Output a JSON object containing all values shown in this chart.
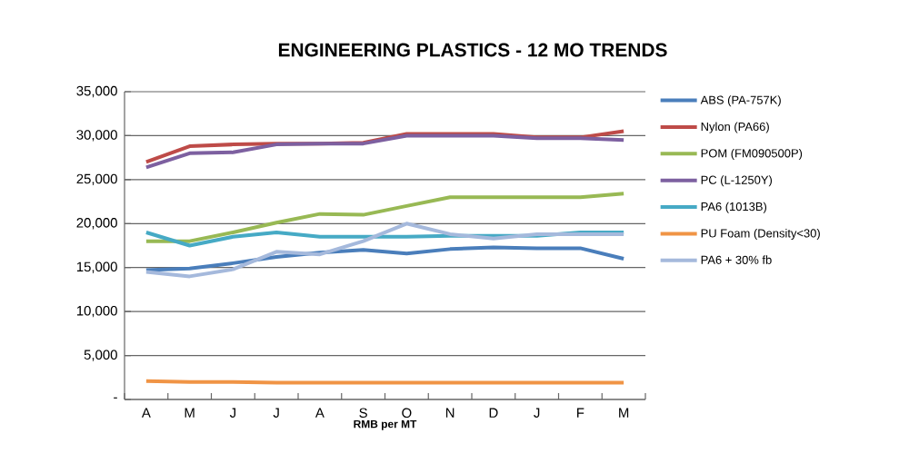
{
  "chart_data": {
    "type": "line",
    "title": "ENGINEERING PLASTICS - 12 MO TRENDS",
    "xlabel": "RMB per MT",
    "categories": [
      "A",
      "M",
      "J",
      "J",
      "A",
      "S",
      "O",
      "N",
      "D",
      "J",
      "F",
      "M"
    ],
    "series": [
      {
        "name": "ABS (PA-757K)",
        "color": "#4a7ebb",
        "values": [
          14700,
          14900,
          15500,
          16200,
          16700,
          17000,
          16600,
          17100,
          17300,
          17200,
          17200,
          16000
        ]
      },
      {
        "name": "Nylon (PA66)",
        "color": "#be4b48",
        "values": [
          27000,
          28800,
          29000,
          29100,
          29100,
          29200,
          30200,
          30200,
          30200,
          29800,
          29800,
          30500
        ]
      },
      {
        "name": "POM (FM090500P)",
        "color": "#98b954",
        "values": [
          18000,
          18000,
          19000,
          20100,
          21100,
          21000,
          22000,
          23000,
          23000,
          23000,
          23000,
          23400
        ]
      },
      {
        "name": "PC (L-1250Y)",
        "color": "#7d60a0",
        "values": [
          26400,
          28000,
          28100,
          29000,
          29100,
          29100,
          30000,
          30000,
          30000,
          29700,
          29700,
          29500
        ]
      },
      {
        "name": "PA6 (1013B)",
        "color": "#46aac5",
        "values": [
          19000,
          17500,
          18500,
          19000,
          18500,
          18500,
          18500,
          18600,
          18600,
          18600,
          19000,
          19000
        ]
      },
      {
        "name": "PU Foam (Density<30)",
        "color": "#f09445",
        "values": [
          2100,
          2000,
          2000,
          1900,
          1900,
          1900,
          1900,
          1900,
          1900,
          1900,
          1900,
          1900
        ]
      },
      {
        "name": "PA6 + 30% fb",
        "color": "#a5b9dc",
        "values": [
          14500,
          14000,
          14800,
          16800,
          16500,
          18000,
          20000,
          18800,
          18300,
          18800,
          18800,
          18800
        ]
      }
    ],
    "ylim": [
      0,
      35000
    ],
    "yticks": [
      {
        "value": 0,
        "label": "-"
      },
      {
        "value": 5000,
        "label": "5,000"
      },
      {
        "value": 10000,
        "label": "10,000"
      },
      {
        "value": 15000,
        "label": "15,000"
      },
      {
        "value": 20000,
        "label": "20,000"
      },
      {
        "value": 25000,
        "label": "25,000"
      },
      {
        "value": 30000,
        "label": "30,000"
      },
      {
        "value": 35000,
        "label": "35,000"
      }
    ],
    "grid": "y",
    "legend": "right",
    "marker": "none",
    "line_style": "solid"
  }
}
